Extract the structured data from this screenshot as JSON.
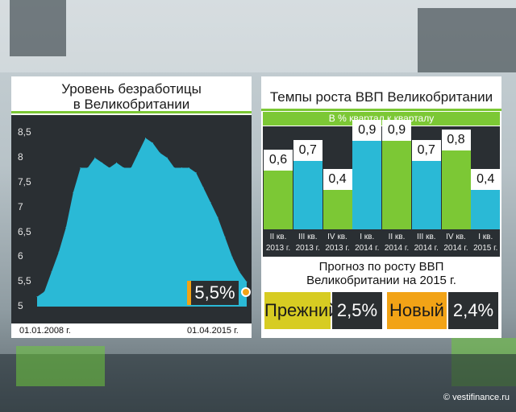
{
  "left_panel": {
    "title_line1": "Уровень безработицы",
    "title_line2": "в Великобритании",
    "start_date": "01.01.2008 г.",
    "end_date": "01.04.2015 г.",
    "current_value": "5,5%",
    "y_ticks": [
      "8,5",
      "8",
      "7,5",
      "7",
      "6,5",
      "6",
      "5,5",
      "5"
    ]
  },
  "right_panel": {
    "title": "Темпы роста ВВП Великобритании",
    "subtitle": "В % квартал к кварталу",
    "forecast_line1": "Прогноз по росту ВВП",
    "forecast_line2": "Великобритании на 2015 г.",
    "prev_label": "Прежний",
    "prev_value": "2,5%",
    "new_label": "Новый",
    "new_value": "2,4%",
    "categories": [
      [
        "II кв.",
        "2013 г."
      ],
      [
        "III кв.",
        "2013 г."
      ],
      [
        "IV кв.",
        "2013 г."
      ],
      [
        "I кв.",
        "2014 г."
      ],
      [
        "II кв.",
        "2014 г."
      ],
      [
        "III кв.",
        "2014 г."
      ],
      [
        "IV кв.",
        "2014 г."
      ],
      [
        "I кв.",
        "2015 г."
      ]
    ],
    "value_labels": [
      "0,6",
      "0,7",
      "0,4",
      "0,9",
      "0,9",
      "0,7",
      "0,8",
      "0,4"
    ]
  },
  "watermark": "© vestifinance.ru",
  "colors": {
    "green": "#7cc835",
    "cyan": "#2ab9d6",
    "orange": "#f2a316",
    "yellow": "#d7cc22",
    "dark": "#2a2f33"
  },
  "chart_data": [
    {
      "type": "area",
      "title": "Уровень безработицы в Великобритании",
      "x": [
        "2008-01",
        "2008-04",
        "2008-07",
        "2008-10",
        "2009-01",
        "2009-04",
        "2009-07",
        "2009-10",
        "2010-01",
        "2010-04",
        "2010-07",
        "2010-10",
        "2011-01",
        "2011-04",
        "2011-07",
        "2011-10",
        "2012-01",
        "2012-04",
        "2012-07",
        "2012-10",
        "2013-01",
        "2013-04",
        "2013-07",
        "2013-10",
        "2014-01",
        "2014-04",
        "2014-07",
        "2014-10",
        "2015-01",
        "2015-04"
      ],
      "values": [
        5.2,
        5.3,
        5.7,
        6.1,
        6.6,
        7.3,
        7.8,
        7.8,
        8.0,
        7.9,
        7.8,
        7.9,
        7.8,
        7.8,
        8.1,
        8.4,
        8.3,
        8.1,
        8.0,
        7.8,
        7.8,
        7.8,
        7.7,
        7.4,
        7.1,
        6.8,
        6.4,
        6.0,
        5.7,
        5.5
      ],
      "ylim": [
        5,
        8.7
      ]
    },
    {
      "type": "bar",
      "title": "Темпы роста ВВП Великобритании",
      "subtitle": "В % квартал к кварталу",
      "categories": [
        "II кв. 2013 г.",
        "III кв. 2013 г.",
        "IV кв. 2013 г.",
        "I кв. 2014 г.",
        "II кв. 2014 г.",
        "III кв. 2014 г.",
        "IV кв. 2014 г.",
        "I кв. 2015 г."
      ],
      "values": [
        0.6,
        0.7,
        0.4,
        0.9,
        0.9,
        0.7,
        0.8,
        0.4
      ],
      "ylim": [
        0,
        1.0
      ]
    }
  ]
}
